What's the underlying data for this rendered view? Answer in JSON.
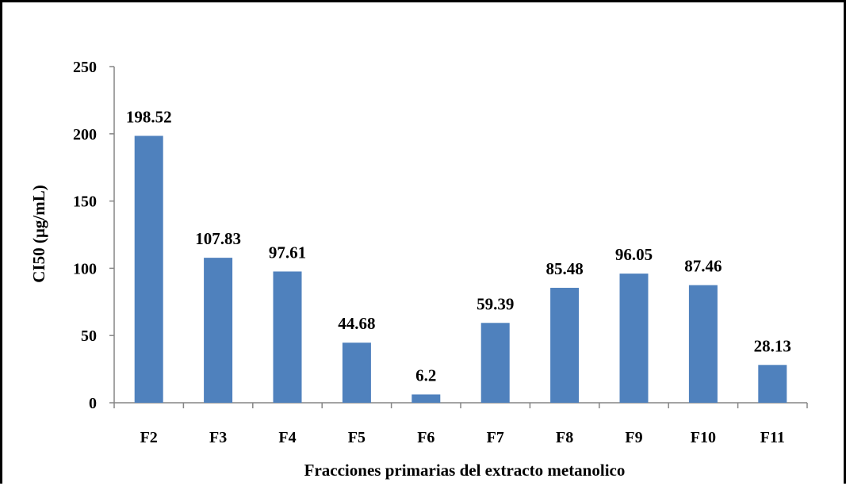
{
  "chart_data": {
    "type": "bar",
    "categories": [
      "F2",
      "F3",
      "F4",
      "F5",
      "F6",
      "F7",
      "F8",
      "F9",
      "F10",
      "F11"
    ],
    "values": [
      198.52,
      107.83,
      97.61,
      44.68,
      6.2,
      59.39,
      85.48,
      96.05,
      87.46,
      28.13
    ],
    "data_labels": [
      "198.52",
      "107.83",
      "97.61",
      "44.68",
      "6.2",
      "59.39",
      "85.48",
      "96.05",
      "87.46",
      "28.13"
    ],
    "xlabel": "Fracciones primarias del extracto metanolico",
    "ylabel": "CI50  (µg/mL)",
    "ylim": [
      0,
      250
    ],
    "yticks": [
      "0",
      "50",
      "100",
      "150",
      "200",
      "250"
    ],
    "grid": false,
    "legend": "none",
    "bar_color": "#4F81BD"
  }
}
